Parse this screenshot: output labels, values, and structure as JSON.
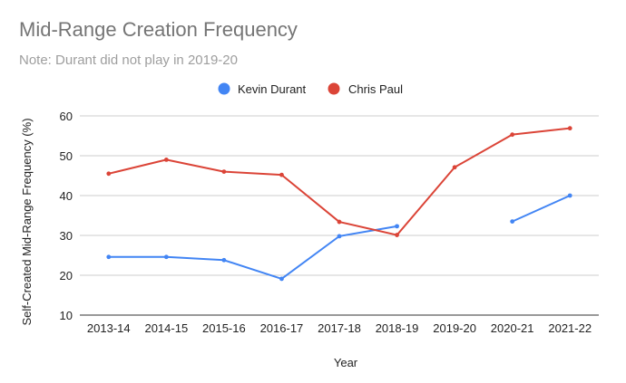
{
  "chart_data": {
    "type": "line",
    "title": "Mid-Range Creation Frequency",
    "subtitle": "Note: Durant did not play in 2019-20",
    "xlabel": "Year",
    "ylabel": "Self-Created Mid-Range Frequency (%)",
    "categories": [
      "2013-14",
      "2014-15",
      "2015-16",
      "2016-17",
      "2017-18",
      "2018-19",
      "2019-20",
      "2020-21",
      "2021-22"
    ],
    "ylim": [
      10,
      60
    ],
    "yticks": [
      "10",
      "20",
      "30",
      "40",
      "50",
      "60"
    ],
    "grid": true,
    "legend_position": "top-center",
    "series": [
      {
        "name": "Kevin Durant",
        "color": "#4285f4",
        "values": [
          24.6,
          24.6,
          23.8,
          19.1,
          29.8,
          32.3,
          null,
          33.5,
          40.0
        ]
      },
      {
        "name": "Chris Paul",
        "color": "#db4437",
        "values": [
          45.5,
          49.0,
          46.0,
          45.2,
          33.4,
          30.1,
          47.1,
          55.3,
          56.9
        ]
      }
    ]
  }
}
